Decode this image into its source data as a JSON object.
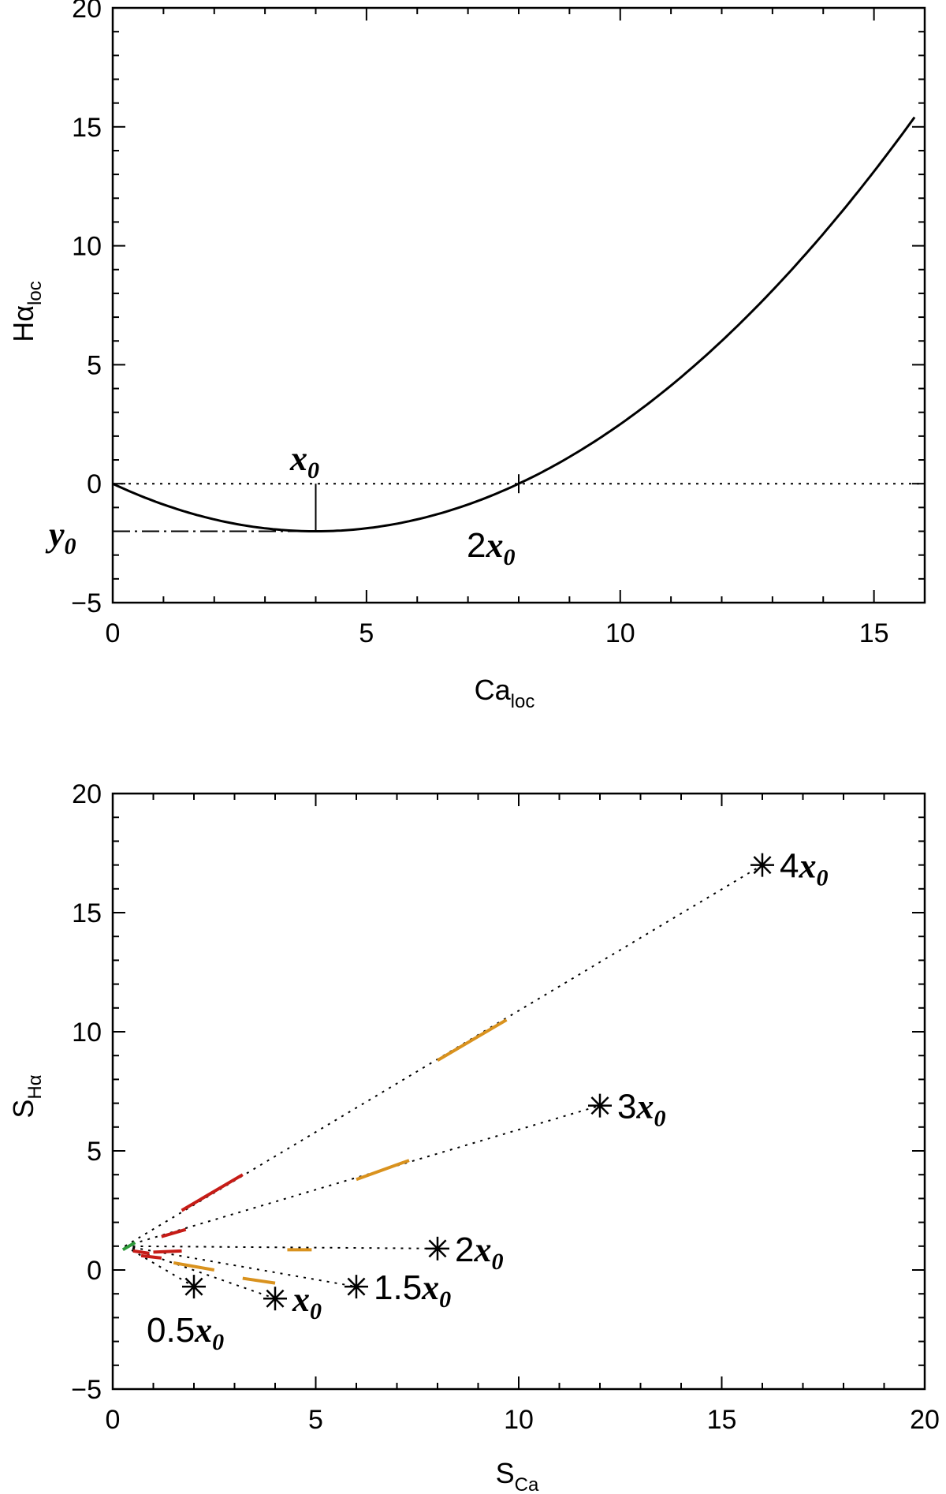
{
  "chart_data": [
    {
      "type": "line",
      "xlabel": {
        "base": "Ca",
        "sub": "loc"
      },
      "ylabel": {
        "base": "Hα",
        "sub": "loc"
      },
      "xlim": [
        0,
        16
      ],
      "ylim": [
        -5,
        20
      ],
      "xticks": [
        0,
        5,
        10,
        15
      ],
      "yticks": [
        -5,
        0,
        5,
        10,
        15,
        20
      ],
      "xtick_labels": [
        "0",
        "5",
        "10",
        "15"
      ],
      "ytick_labels": [
        "−5",
        "0",
        "5",
        "10",
        "15",
        "20"
      ],
      "minor_x_step": 1,
      "minor_y_step": 1,
      "curve": {
        "formula": "y = 0.125*x^2 - x",
        "x": [
          0,
          1,
          2,
          3,
          4,
          5,
          6,
          7,
          8,
          9,
          10,
          11,
          12,
          13,
          14,
          15,
          15.8
        ],
        "y": [
          0,
          -0.875,
          -1.5,
          -1.875,
          -2,
          -1.875,
          -1.5,
          -0.875,
          0,
          1.125,
          2.5,
          4.125,
          6,
          8.125,
          10.5,
          13.125,
          15.41
        ]
      },
      "zero_line_y": 0,
      "vertex": {
        "x": 4,
        "y": -2
      },
      "root": {
        "x": 8,
        "y": 0
      },
      "annotations": [
        {
          "id": "x0",
          "base": "x",
          "sub": "0",
          "prefix": ""
        },
        {
          "id": "y0",
          "base": "y",
          "sub": "0",
          "prefix": ""
        },
        {
          "id": "2x0",
          "base": "x",
          "sub": "0",
          "prefix": "2"
        }
      ]
    },
    {
      "type": "scatter",
      "xlabel": {
        "base": "S",
        "sub": "Ca"
      },
      "ylabel": {
        "base": "S",
        "sub": "Hα"
      },
      "xlim": [
        0,
        20
      ],
      "ylim": [
        -5,
        20
      ],
      "xticks": [
        0,
        5,
        10,
        15,
        20
      ],
      "yticks": [
        -5,
        0,
        5,
        10,
        15,
        20
      ],
      "xtick_labels": [
        "0",
        "5",
        "10",
        "15",
        "20"
      ],
      "ytick_labels": [
        "−5",
        "0",
        "5",
        "10",
        "15",
        "20"
      ],
      "minor_x_step": 1,
      "minor_y_step": 1,
      "origin_point": {
        "x": 0.3,
        "y": 1.0
      },
      "points": [
        {
          "x": 2.0,
          "y": -0.7,
          "prefix": "0.5",
          "label_pos": "below-left"
        },
        {
          "x": 4.0,
          "y": -1.2,
          "prefix": "",
          "label_pos": "right"
        },
        {
          "x": 6.0,
          "y": -0.7,
          "prefix": "1.5",
          "label_pos": "right"
        },
        {
          "x": 8.0,
          "y": 0.9,
          "prefix": "2",
          "label_pos": "right"
        },
        {
          "x": 12.0,
          "y": 6.9,
          "prefix": "3",
          "label_pos": "right"
        },
        {
          "x": 16.0,
          "y": 17.0,
          "prefix": "4",
          "label_pos": "right"
        }
      ],
      "label_base": "x",
      "label_sub": "0",
      "segments": [
        {
          "color": "#d9921e",
          "x": [
            1.5,
            2.5
          ],
          "y": [
            0.3,
            0.0
          ]
        },
        {
          "color": "#d9921e",
          "x": [
            3.2,
            4.0
          ],
          "y": [
            -0.35,
            -0.55
          ]
        },
        {
          "color": "#d9921e",
          "x": [
            4.3,
            4.9
          ],
          "y": [
            0.85,
            0.85
          ]
        },
        {
          "color": "#d9921e",
          "x": [
            6.0,
            7.3
          ],
          "y": [
            3.8,
            4.6
          ]
        },
        {
          "color": "#d9921e",
          "x": [
            8.0,
            9.7
          ],
          "y": [
            8.8,
            10.5
          ]
        },
        {
          "color": "#c61c17",
          "x": [
            0.7,
            1.2
          ],
          "y": [
            0.6,
            0.5
          ]
        },
        {
          "color": "#c61c17",
          "x": [
            1.0,
            1.7
          ],
          "y": [
            0.75,
            0.8
          ]
        },
        {
          "color": "#c61c17",
          "x": [
            1.2,
            1.8
          ],
          "y": [
            1.4,
            1.7
          ]
        },
        {
          "color": "#c61c17",
          "x": [
            1.7,
            3.2
          ],
          "y": [
            2.5,
            4.0
          ]
        },
        {
          "color": "#c61c17",
          "x": [
            0.5,
            0.9
          ],
          "y": [
            0.8,
            0.7
          ]
        },
        {
          "color": "#2e9a3a",
          "x": [
            0.25,
            0.55
          ],
          "y": [
            0.85,
            1.15
          ]
        }
      ]
    }
  ]
}
